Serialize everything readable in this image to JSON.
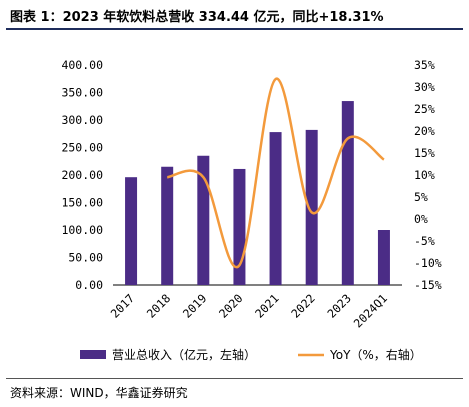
{
  "title": "图表 1：2023 年软饮料总营收 334.44 亿元，同比+18.31%",
  "source": "资料来源：WIND，华鑫证券研究",
  "colors": {
    "bar": "#4b2c86",
    "line": "#f39a3c",
    "rule": "#1f2d5c"
  },
  "chart_data": {
    "type": "bar",
    "categories": [
      "2017",
      "2018",
      "2019",
      "2020",
      "2021",
      "2022",
      "2023",
      "2024Q1"
    ],
    "series": [
      {
        "name": "营业总收入（亿元，左轴）",
        "type": "bar",
        "axis": "left",
        "values": [
          196,
          215,
          235,
          211,
          278,
          282,
          334.44,
          100
        ]
      },
      {
        "name": "YoY（%，右轴）",
        "type": "line",
        "axis": "right",
        "values": [
          null,
          9.5,
          9.5,
          -10.5,
          31.8,
          1.5,
          18.31,
          13.5
        ]
      }
    ],
    "left_axis": {
      "min": 0,
      "max": 400,
      "ticks": [
        "0.00",
        "50.00",
        "100.00",
        "150.00",
        "200.00",
        "250.00",
        "300.00",
        "350.00",
        "400.00"
      ]
    },
    "right_axis": {
      "min": -15,
      "max": 35,
      "ticks": [
        "-15%",
        "-10%",
        "-5%",
        "0%",
        "5%",
        "10%",
        "15%",
        "20%",
        "25%",
        "30%",
        "35%"
      ]
    },
    "legend": {
      "placement": "bottom"
    },
    "grid": false
  }
}
